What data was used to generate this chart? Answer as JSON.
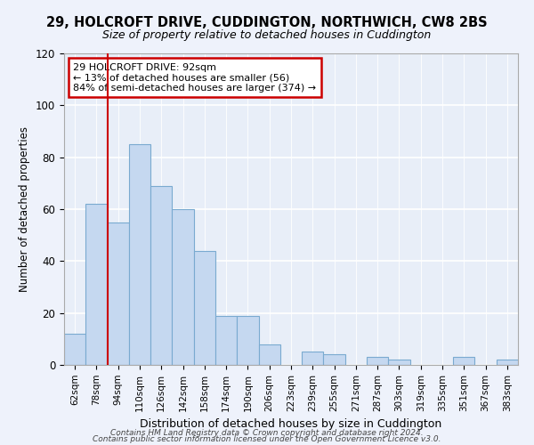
{
  "title1": "29, HOLCROFT DRIVE, CUDDINGTON, NORTHWICH, CW8 2BS",
  "title2": "Size of property relative to detached houses in Cuddington",
  "xlabel": "Distribution of detached houses by size in Cuddington",
  "ylabel": "Number of detached properties",
  "bar_color": "#c5d8f0",
  "bar_edge_color": "#7aaad0",
  "bin_labels": [
    "62sqm",
    "78sqm",
    "94sqm",
    "110sqm",
    "126sqm",
    "142sqm",
    "158sqm",
    "174sqm",
    "190sqm",
    "206sqm",
    "223sqm",
    "239sqm",
    "255sqm",
    "271sqm",
    "287sqm",
    "303sqm",
    "319sqm",
    "335sqm",
    "351sqm",
    "367sqm",
    "383sqm"
  ],
  "values": [
    12,
    62,
    55,
    85,
    69,
    60,
    44,
    19,
    19,
    8,
    0,
    5,
    4,
    0,
    3,
    2,
    0,
    0,
    3,
    0,
    2
  ],
  "vline_color": "#cc0000",
  "vline_x_index": 2,
  "ylim": [
    0,
    120
  ],
  "yticks": [
    0,
    20,
    40,
    60,
    80,
    100,
    120
  ],
  "annotation_title": "29 HOLCROFT DRIVE: 92sqm",
  "annotation_line1": "← 13% of detached houses are smaller (56)",
  "annotation_line2": "84% of semi-detached houses are larger (374) →",
  "annotation_box_facecolor": "#ffffff",
  "annotation_box_edgecolor": "#cc0000",
  "footer1": "Contains HM Land Registry data © Crown copyright and database right 2024.",
  "footer2": "Contains public sector information licensed under the Open Government Licence v3.0.",
  "background_color": "#eef2fb",
  "grid_color": "#ffffff",
  "axis_bg_color": "#e8eef8"
}
